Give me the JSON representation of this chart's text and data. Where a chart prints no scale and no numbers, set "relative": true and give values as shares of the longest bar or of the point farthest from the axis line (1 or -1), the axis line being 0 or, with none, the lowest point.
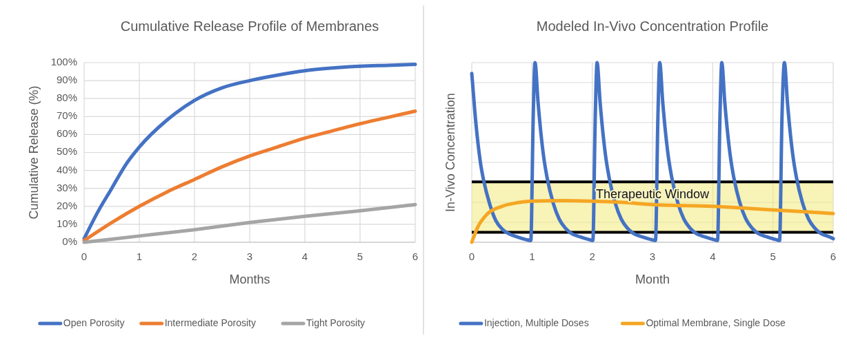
{
  "chart_data": [
    {
      "type": "line",
      "title": "Cumulative Release Profile of Membranes",
      "xlabel": "Months",
      "ylabel": "Cumulative Release (%)",
      "xlim": [
        0,
        6
      ],
      "xticks": [
        0,
        1,
        2,
        3,
        4,
        5,
        6
      ],
      "ylim": [
        0,
        100
      ],
      "yticks": [
        {
          "value": 0,
          "label": "0%"
        },
        {
          "value": 10,
          "label": "10%"
        },
        {
          "value": 20,
          "label": "20%"
        },
        {
          "value": 30,
          "label": "30%"
        },
        {
          "value": 40,
          "label": "40%"
        },
        {
          "value": 50,
          "label": "50%"
        },
        {
          "value": 60,
          "label": "60%"
        },
        {
          "value": 70,
          "label": "70%"
        },
        {
          "value": 80,
          "label": "80%"
        },
        {
          "value": 90,
          "label": "90%"
        },
        {
          "value": 100,
          "label": "100%"
        }
      ],
      "grid": true,
      "legend": "bottom",
      "marker": "none",
      "line_style": "solid",
      "series": [
        {
          "name": "Open Porosity",
          "color": "#4472c4",
          "x": [
            0,
            0.25,
            0.5,
            0.75,
            1,
            1.5,
            2,
            2.5,
            3,
            3.5,
            4,
            4.5,
            5,
            5.5,
            6
          ],
          "values": [
            2,
            17,
            30,
            43,
            53,
            68,
            79,
            86,
            90,
            93,
            95.5,
            97,
            98,
            98.5,
            99
          ]
        },
        {
          "name": "Intermediate Porosity",
          "color": "#ed7d31",
          "x": [
            0,
            0.5,
            1,
            1.5,
            2,
            2.5,
            3,
            3.5,
            4,
            4.5,
            5,
            5.5,
            6
          ],
          "values": [
            1,
            11,
            20,
            28,
            35,
            42,
            48,
            53,
            58,
            62,
            66,
            69.5,
            73
          ]
        },
        {
          "name": "Tight Porosity",
          "color": "#a5a5a5",
          "x": [
            0,
            1,
            2,
            3,
            4,
            5,
            6
          ],
          "values": [
            0,
            3.5,
            7,
            11,
            14.5,
            17.5,
            21
          ]
        }
      ]
    },
    {
      "type": "line",
      "title": "Modeled In-Vivo Concentration Profile",
      "xlabel": "Month",
      "ylabel": "In-Vivo Concentration",
      "relative": true,
      "xlim": [
        0,
        6
      ],
      "xticks": [
        0,
        1,
        2,
        3,
        4,
        5,
        6
      ],
      "tick_labels": "x",
      "grid": true,
      "legend": "bottom",
      "marker": "none",
      "line_style": "solid",
      "bands": [
        {
          "axis": "y",
          "from": 0.056,
          "to": 0.336,
          "label": "Therapeutic Window",
          "color": "#f3ea7a"
        }
      ],
      "ref_lines": [
        {
          "axis": "y",
          "value": 0.056,
          "color": "#000000"
        },
        {
          "axis": "y",
          "value": 0.336,
          "color": "#000000"
        }
      ],
      "series": [
        {
          "name": "Injection, Multiple Doses",
          "color": "#4472c4",
          "x": [
            0,
            0.05,
            0.1,
            0.15,
            0.2,
            0.3,
            0.4,
            0.5,
            0.6,
            0.75,
            0.9,
            0.98,
            1.02,
            1.05,
            1.1,
            1.15,
            1.2,
            1.25,
            1.35,
            1.45,
            1.55,
            1.65,
            1.8,
            1.95,
            2.01,
            2.05,
            2.08,
            2.13,
            2.18,
            2.23,
            2.28,
            2.38,
            2.48,
            2.58,
            2.68,
            2.83,
            2.98,
            3.05,
            3.09,
            3.12,
            3.17,
            3.22,
            3.27,
            3.32,
            3.42,
            3.52,
            3.62,
            3.72,
            3.87,
            4.02,
            4.08,
            4.12,
            4.15,
            4.2,
            4.25,
            4.3,
            4.35,
            4.45,
            4.55,
            4.65,
            4.75,
            4.9,
            5.05,
            5.11,
            5.15,
            5.19,
            5.24,
            5.29,
            5.34,
            5.39,
            5.49,
            5.59,
            5.69,
            5.79,
            5.94,
            6
          ],
          "values": [
            0.94,
            0.73,
            0.56,
            0.43,
            0.34,
            0.21,
            0.12,
            0.075,
            0.05,
            0.03,
            0.015,
            0.01,
            0.7,
            1,
            0.78,
            0.6,
            0.46,
            0.36,
            0.22,
            0.13,
            0.08,
            0.05,
            0.03,
            0.015,
            0.01,
            0.7,
            1,
            0.78,
            0.6,
            0.46,
            0.36,
            0.22,
            0.13,
            0.08,
            0.05,
            0.03,
            0.015,
            0.01,
            0.7,
            1,
            0.78,
            0.6,
            0.46,
            0.36,
            0.22,
            0.13,
            0.08,
            0.05,
            0.03,
            0.015,
            0.01,
            0.7,
            1,
            0.78,
            0.6,
            0.46,
            0.36,
            0.22,
            0.13,
            0.08,
            0.05,
            0.03,
            0.015,
            0.01,
            0.7,
            1,
            0.78,
            0.6,
            0.46,
            0.36,
            0.22,
            0.13,
            0.08,
            0.05,
            0.03,
            0.02
          ]
        },
        {
          "name": "Optimal Membrane, Single Dose",
          "color": "#f5a623",
          "x": [
            0,
            0.1,
            0.25,
            0.5,
            0.75,
            1,
            1.5,
            2,
            2.5,
            3,
            4,
            5,
            6
          ],
          "values": [
            0,
            0.085,
            0.155,
            0.2,
            0.22,
            0.229,
            0.232,
            0.229,
            0.222,
            0.21,
            0.2,
            0.18,
            0.16
          ]
        }
      ]
    }
  ]
}
